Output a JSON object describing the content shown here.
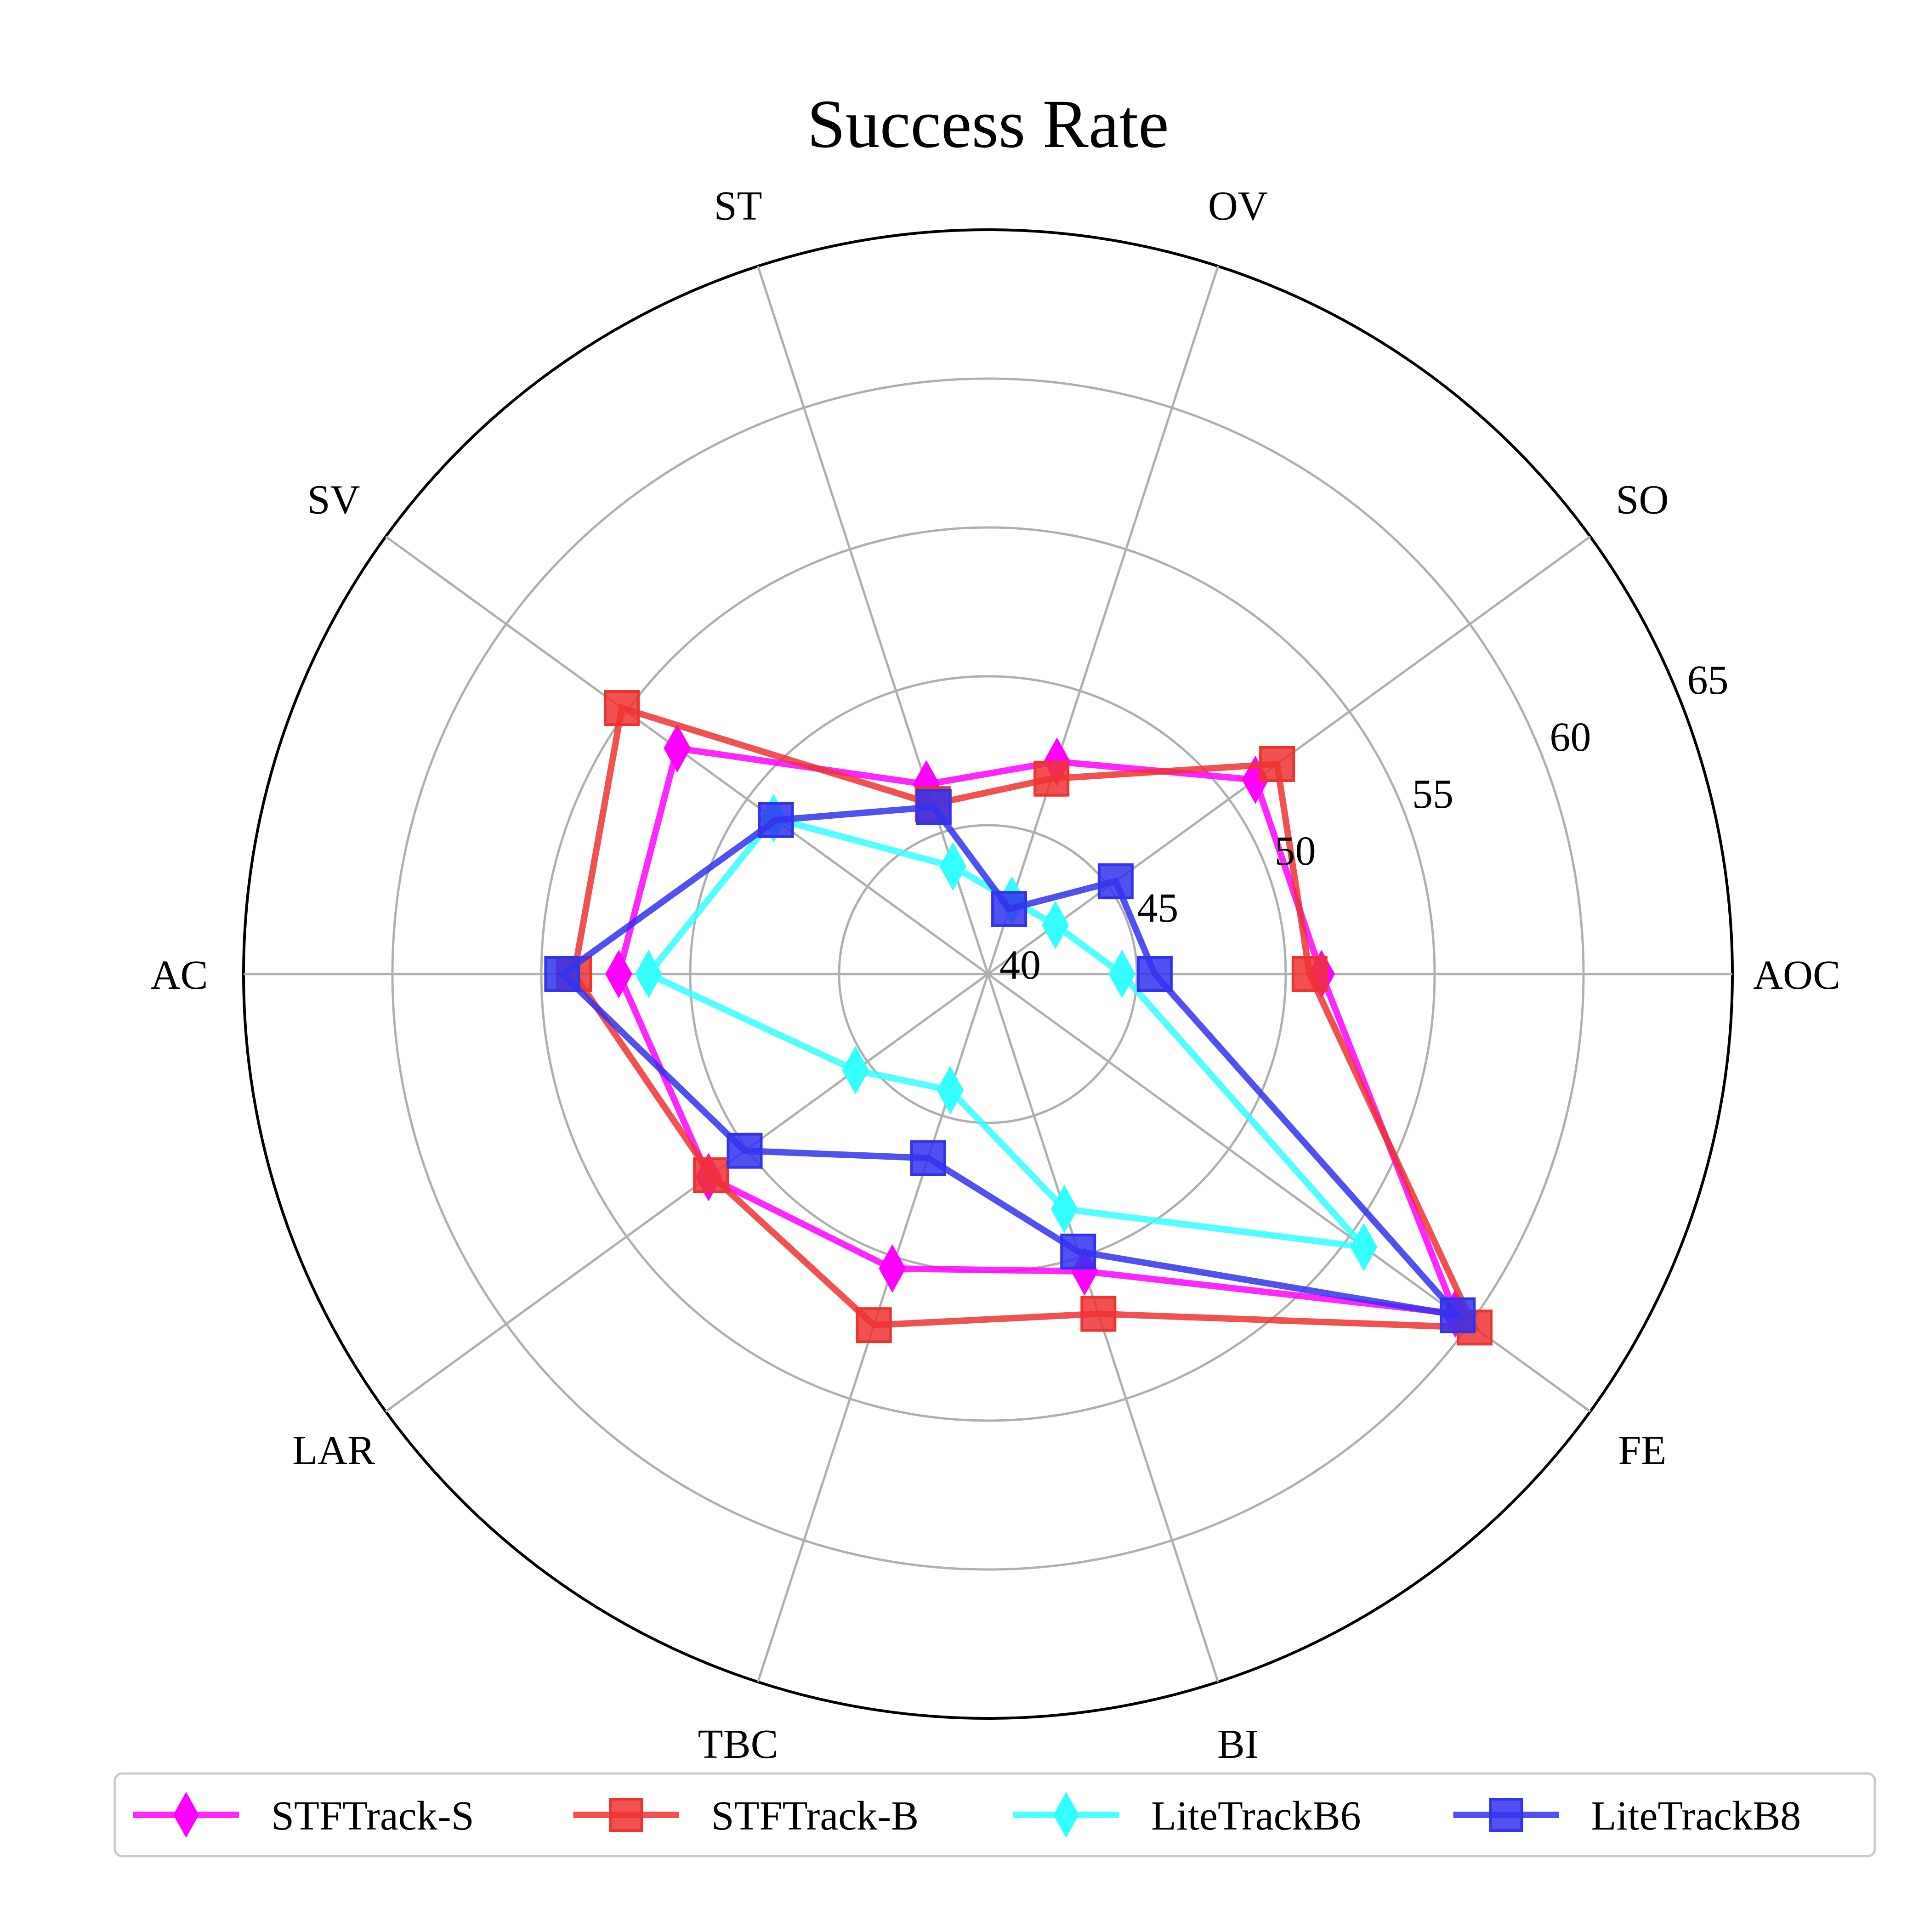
{
  "chart_data": {
    "type": "radar",
    "title": "Success Rate",
    "categories": [
      "AOC",
      "SO",
      "OV",
      "ST",
      "SV",
      "AC",
      "LAR",
      "TBC",
      "BI",
      "FE"
    ],
    "rlim": [
      40,
      65
    ],
    "rticks": [
      "40",
      "45",
      "50",
      "55",
      "60",
      "65"
    ],
    "grid": true,
    "legend_position": "bottom",
    "series": [
      {
        "name": "STFTrack-S",
        "marker": "diamond",
        "color": "#ff00ff",
        "values": [
          51.2,
          51.1,
          47.5,
          46.7,
          52.9,
          52.4,
          51.6,
          50.4,
          50.5,
          59.4
        ]
      },
      {
        "name": "STFTrack-B",
        "marker": "square",
        "color": "#ee3333",
        "values": [
          50.8,
          52.0,
          46.9,
          46.0,
          55.2,
          53.9,
          51.5,
          52.4,
          52.0,
          60.2
        ]
      },
      {
        "name": "LiteTrackB6",
        "marker": "diamond",
        "color": "#33ffff",
        "values": [
          44.5,
          42.8,
          42.6,
          43.8,
          48.9,
          51.4,
          45.5,
          44.1,
          48.3,
          55.6
        ]
      },
      {
        "name": "LiteTrackB8",
        "marker": "square",
        "color": "#3333ee",
        "values": [
          45.6,
          45.3,
          42.3,
          45.9,
          48.8,
          54.3,
          50.1,
          46.5,
          49.8,
          59.5
        ]
      }
    ]
  }
}
